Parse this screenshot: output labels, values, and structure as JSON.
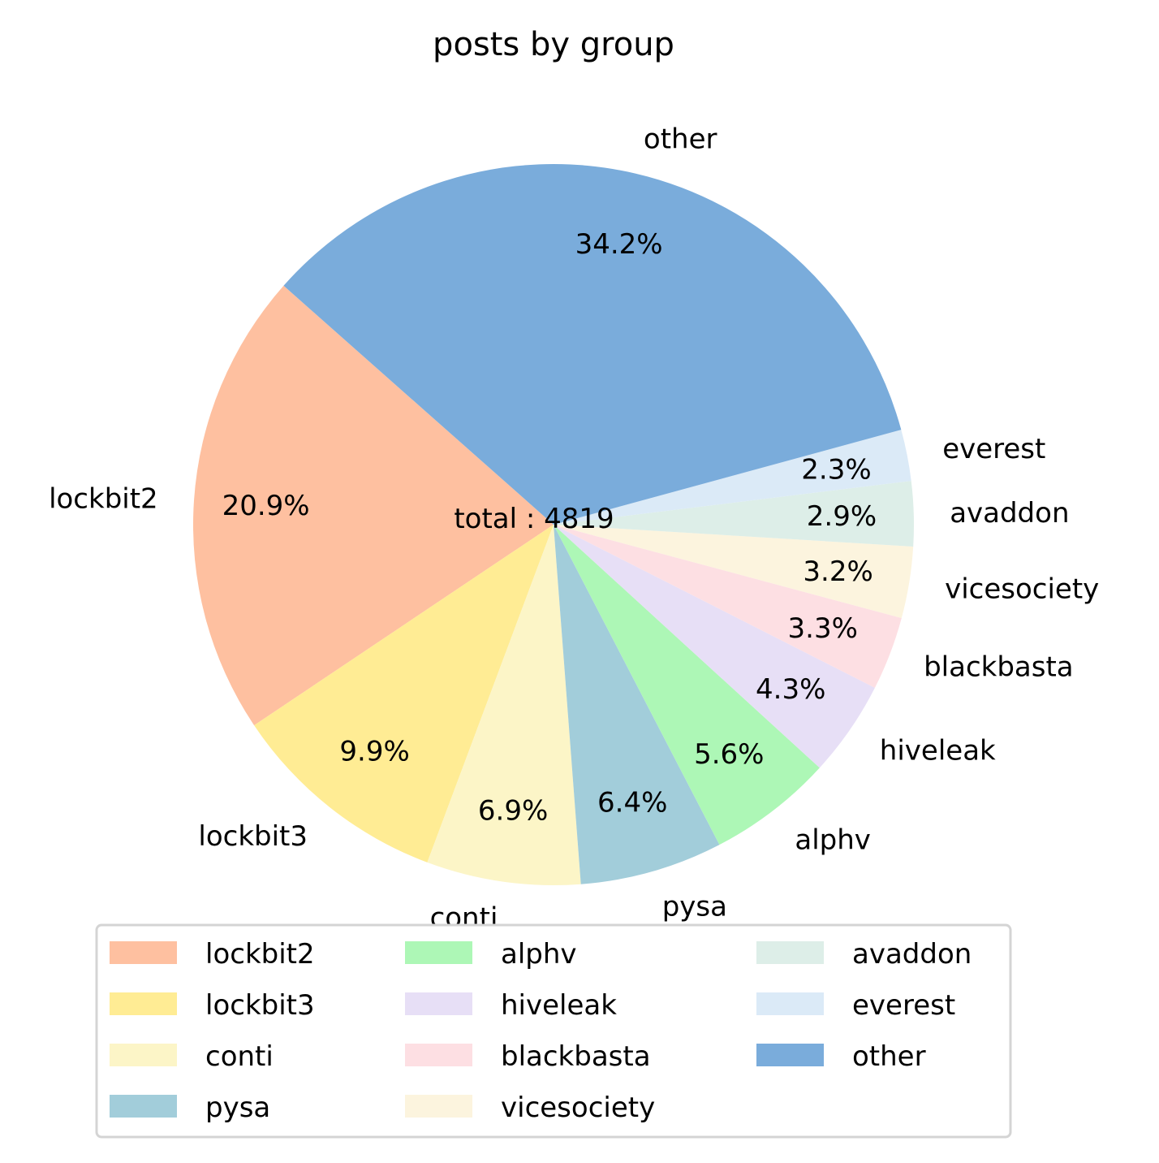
{
  "chart_data": {
    "type": "pie",
    "title": "posts by group",
    "center_text": "total : 4819",
    "slices": [
      {
        "label": "lockbit2",
        "pct": 20.9,
        "pct_label": "20.9%",
        "color": "#fec0a0"
      },
      {
        "label": "lockbit3",
        "pct": 9.9,
        "pct_label": "9.9%",
        "color": "#ffec94"
      },
      {
        "label": "conti",
        "pct": 6.9,
        "pct_label": "6.9%",
        "color": "#fcf5c7"
      },
      {
        "label": "pysa",
        "pct": 6.4,
        "pct_label": "6.4%",
        "color": "#a2cdda"
      },
      {
        "label": "alphv",
        "pct": 5.6,
        "pct_label": "5.6%",
        "color": "#adf7b6"
      },
      {
        "label": "hiveleak",
        "pct": 4.3,
        "pct_label": "4.3%",
        "color": "#e7dff6"
      },
      {
        "label": "blackbasta",
        "pct": 3.3,
        "pct_label": "3.3%",
        "color": "#fddfe3"
      },
      {
        "label": "vicesociety",
        "pct": 3.2,
        "pct_label": "3.2%",
        "color": "#fcf4de"
      },
      {
        "label": "avaddon",
        "pct": 2.9,
        "pct_label": "2.9%",
        "color": "#ddeee8"
      },
      {
        "label": "everest",
        "pct": 2.3,
        "pct_label": "2.3%",
        "color": "#dbeaf7"
      },
      {
        "label": "other",
        "pct": 34.2,
        "pct_label": "34.2%",
        "color": "#7aacdb"
      }
    ],
    "legend": {
      "placement": "bottom",
      "columns": 3
    }
  }
}
